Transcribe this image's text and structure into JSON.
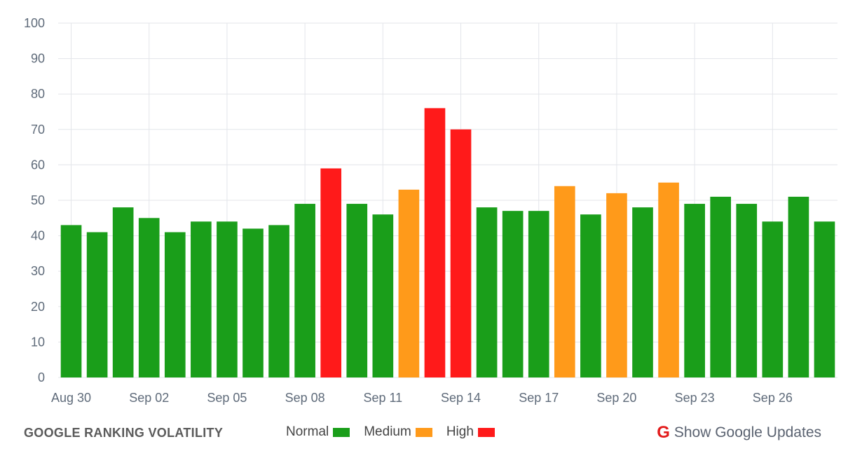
{
  "chart_data": {
    "type": "bar",
    "title": "GOOGLE RANKING VOLATILITY",
    "ylim": [
      0,
      100
    ],
    "yticks": [
      0,
      10,
      20,
      30,
      40,
      50,
      60,
      70,
      80,
      90,
      100
    ],
    "categories": [
      "Aug 30",
      "Aug 31",
      "Sep 01",
      "Sep 02",
      "Sep 03",
      "Sep 04",
      "Sep 05",
      "Sep 06",
      "Sep 07",
      "Sep 08",
      "Sep 09",
      "Sep 10",
      "Sep 11",
      "Sep 12",
      "Sep 13",
      "Sep 14",
      "Sep 15",
      "Sep 16",
      "Sep 17",
      "Sep 18",
      "Sep 19",
      "Sep 20",
      "Sep 21",
      "Sep 22",
      "Sep 23",
      "Sep 24",
      "Sep 25",
      "Sep 26",
      "Sep 27",
      "Sep 28"
    ],
    "x_tick_labels": [
      "Aug 30",
      "Sep 02",
      "Sep 05",
      "Sep 08",
      "Sep 11",
      "Sep 14",
      "Sep 17",
      "Sep 20",
      "Sep 23",
      "Sep 26"
    ],
    "values": [
      43,
      41,
      48,
      45,
      41,
      44,
      44,
      42,
      43,
      49,
      59,
      49,
      46,
      53,
      76,
      70,
      48,
      47,
      47,
      54,
      46,
      52,
      48,
      55,
      49,
      51,
      49,
      44,
      51,
      44
    ],
    "levels": [
      "normal",
      "normal",
      "normal",
      "normal",
      "normal",
      "normal",
      "normal",
      "normal",
      "normal",
      "normal",
      "high",
      "normal",
      "normal",
      "medium",
      "high",
      "high",
      "normal",
      "normal",
      "normal",
      "medium",
      "normal",
      "medium",
      "normal",
      "medium",
      "normal",
      "normal",
      "normal",
      "normal",
      "normal",
      "normal"
    ],
    "legend": [
      {
        "key": "normal",
        "label": "Normal",
        "color": "#1a9e1a"
      },
      {
        "key": "medium",
        "label": "Medium",
        "color": "#ff9a1a"
      },
      {
        "key": "high",
        "label": "High",
        "color": "#ff1a1a"
      }
    ],
    "grid": true,
    "legend_position": "bottom-center"
  },
  "footer": {
    "title": "GOOGLE RANKING VOLATILITY",
    "updates_icon": "G",
    "updates_label": "Show Google Updates"
  },
  "colors": {
    "grid": "#e3e5ea",
    "tick_text": "#5f6b7a",
    "brand_red": "#e31b1b"
  }
}
